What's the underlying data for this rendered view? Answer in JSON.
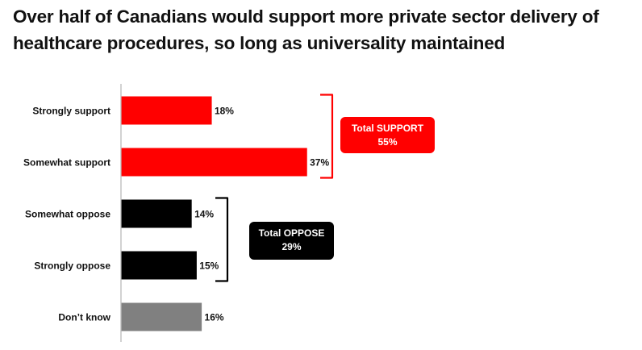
{
  "title": "Over half of Canadians would support more private sector delivery of healthcare procedures, so long as universality maintained",
  "chart_data": {
    "type": "bar",
    "orientation": "horizontal",
    "title": "Over half of Canadians would support more private sector delivery of healthcare procedures, so long as universality maintained",
    "xlabel": "",
    "ylabel": "",
    "unit": "%",
    "xlim": [
      0,
      50
    ],
    "grid": false,
    "legend": "none",
    "categories": [
      "Strongly support",
      "Somewhat support",
      "Somewhat oppose",
      "Strongly oppose",
      "Don’t know"
    ],
    "values": [
      18,
      37,
      14,
      15,
      16
    ],
    "value_labels": [
      "18%",
      "37%",
      "14%",
      "15%",
      "16%"
    ],
    "colors": [
      "#ff0000",
      "#ff0000",
      "#000000",
      "#000000",
      "#808080"
    ],
    "groups": [
      {
        "label": "Total SUPPORT",
        "value_label": "55%",
        "value": 55,
        "members": [
          0,
          1
        ],
        "color": "#ff0000",
        "text_color": "#ffffff"
      },
      {
        "label": "Total OPPOSE",
        "value_label": "29%",
        "value": 29,
        "members": [
          2,
          3
        ],
        "color": "#000000",
        "text_color": "#ffffff"
      }
    ]
  }
}
